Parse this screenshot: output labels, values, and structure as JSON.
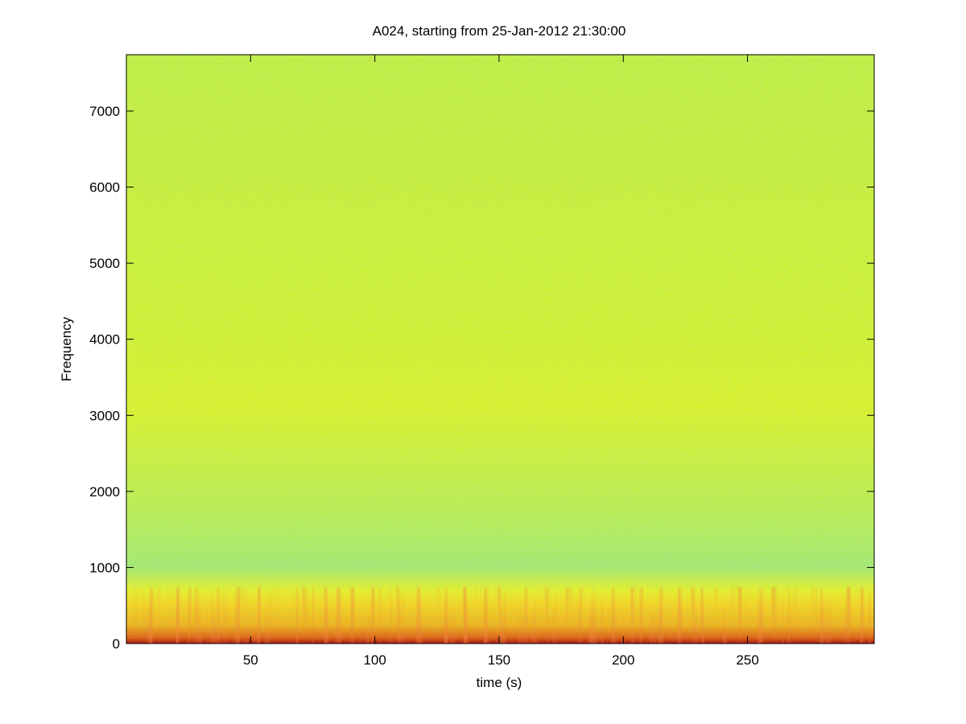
{
  "chart_data": {
    "type": "spectrogram",
    "title": "A024, starting from 25-Jan-2012 21:30:00",
    "xlabel": "time (s)",
    "ylabel": "Frequency",
    "xlim": [
      0,
      301
    ],
    "xticks": [
      50,
      100,
      150,
      200,
      250
    ],
    "ylim": [
      0,
      7740
    ],
    "yticks": [
      0,
      1000,
      2000,
      3000,
      4000,
      5000,
      6000,
      7000
    ]
  }
}
